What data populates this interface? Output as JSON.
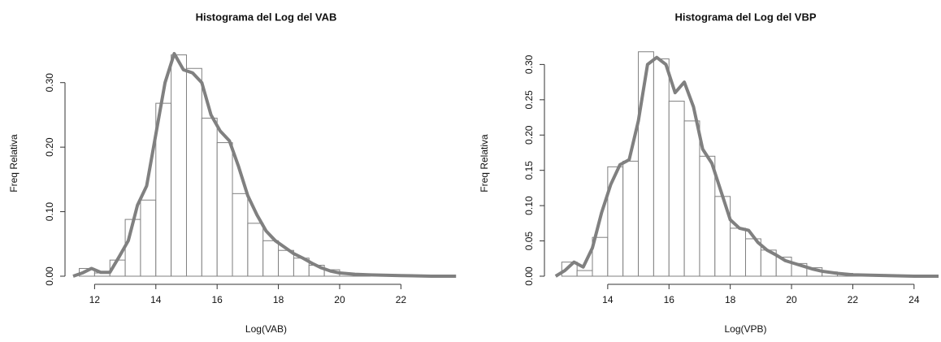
{
  "chart_data": [
    {
      "type": "histogram",
      "title": "Histograma del Log del VAB",
      "x_label": "Log(VAB)",
      "y_label": "Freq Relativa",
      "bins": [
        11.5,
        12,
        12.5,
        13,
        13.5,
        14,
        14.5,
        15,
        15.5,
        16,
        16.5,
        17,
        17.5,
        18,
        18.5,
        19,
        19.5,
        20,
        20.5,
        21
      ],
      "values": [
        0.012,
        0.005,
        0.025,
        0.088,
        0.118,
        0.268,
        0.343,
        0.322,
        0.245,
        0.207,
        0.128,
        0.082,
        0.055,
        0.04,
        0.028,
        0.017,
        0.01,
        0.004,
        0.002
      ],
      "color": "#ffffff",
      "edgecolor": "#808080",
      "density": {
        "color": "#808080",
        "x": [
          11.3,
          11.6,
          11.9,
          12.2,
          12.5,
          12.8,
          13.1,
          13.4,
          13.7,
          14.0,
          14.3,
          14.6,
          14.9,
          15.2,
          15.5,
          15.8,
          16.1,
          16.4,
          16.7,
          17.0,
          17.3,
          17.6,
          17.9,
          18.2,
          18.5,
          18.8,
          19.1,
          19.4,
          19.7,
          20.0,
          20.5,
          21,
          22,
          23,
          23.8
        ],
        "y": [
          0,
          0.005,
          0.012,
          0.006,
          0.006,
          0.03,
          0.055,
          0.11,
          0.14,
          0.22,
          0.3,
          0.345,
          0.32,
          0.315,
          0.3,
          0.25,
          0.225,
          0.21,
          0.17,
          0.125,
          0.095,
          0.07,
          0.055,
          0.045,
          0.035,
          0.028,
          0.02,
          0.013,
          0.008,
          0.005,
          0.003,
          0.002,
          0.001,
          0,
          0
        ]
      },
      "xlim": [
        11.3,
        23.9
      ],
      "ylim": [
        0,
        0.35
      ],
      "xticks": [
        12,
        14,
        16,
        18,
        20,
        22
      ],
      "yticks": [
        {
          "value": 0,
          "label": "0.00"
        },
        {
          "value": 0.1,
          "label": "0.10"
        },
        {
          "value": 0.2,
          "label": "0.20"
        },
        {
          "value": 0.3,
          "label": "0.30"
        }
      ]
    },
    {
      "type": "histogram",
      "title": "Histograma del Log del VBP",
      "x_label": "Log(VPB)",
      "y_label": "Freq Relativa",
      "bins": [
        12.5,
        13,
        13.5,
        14,
        14.5,
        15,
        15.5,
        16,
        16.5,
        17,
        17.5,
        18,
        18.5,
        19,
        19.5,
        20,
        20.5,
        21,
        21.5,
        22,
        22.5,
        23
      ],
      "values": [
        0.02,
        0.008,
        0.055,
        0.155,
        0.163,
        0.318,
        0.308,
        0.248,
        0.22,
        0.17,
        0.113,
        0.068,
        0.053,
        0.037,
        0.027,
        0.018,
        0.012,
        0.006,
        0.004,
        0.002,
        0.001
      ],
      "color": "#ffffff",
      "edgecolor": "#808080",
      "density": {
        "color": "#808080",
        "x": [
          12.3,
          12.6,
          12.9,
          13.2,
          13.5,
          13.8,
          14.1,
          14.4,
          14.7,
          15.0,
          15.3,
          15.6,
          15.9,
          16.2,
          16.5,
          16.8,
          17.1,
          17.4,
          17.7,
          18.0,
          18.3,
          18.6,
          18.9,
          19.2,
          19.5,
          19.8,
          20.1,
          20.4,
          20.7,
          21.0,
          21.5,
          22,
          23,
          24,
          24.8
        ],
        "y": [
          0,
          0.008,
          0.02,
          0.013,
          0.04,
          0.09,
          0.13,
          0.158,
          0.165,
          0.22,
          0.3,
          0.31,
          0.3,
          0.26,
          0.275,
          0.24,
          0.18,
          0.16,
          0.12,
          0.08,
          0.068,
          0.065,
          0.048,
          0.037,
          0.03,
          0.022,
          0.018,
          0.014,
          0.01,
          0.007,
          0.004,
          0.002,
          0.001,
          0,
          0
        ]
      },
      "xlim": [
        12.2,
        24.8
      ],
      "ylim": [
        0,
        0.32
      ],
      "xticks": [
        14,
        16,
        18,
        20,
        22,
        24
      ],
      "yticks": [
        {
          "value": 0,
          "label": "0.00"
        },
        {
          "value": 0.05,
          "label": "0.05"
        },
        {
          "value": 0.1,
          "label": "0.10"
        },
        {
          "value": 0.15,
          "label": "0.15"
        },
        {
          "value": 0.2,
          "label": "0.20"
        },
        {
          "value": 0.25,
          "label": "0.25"
        },
        {
          "value": 0.3,
          "label": "0.30"
        }
      ]
    }
  ]
}
